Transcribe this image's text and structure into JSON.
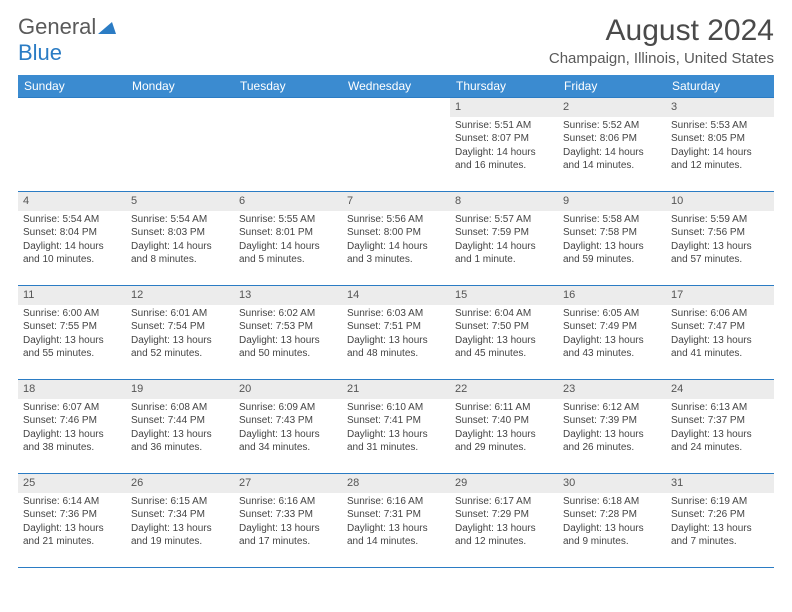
{
  "logo": {
    "general": "General",
    "blue": "Blue"
  },
  "title": "August 2024",
  "location": "Champaign, Illinois, United States",
  "weekdays": [
    "Sunday",
    "Monday",
    "Tuesday",
    "Wednesday",
    "Thursday",
    "Friday",
    "Saturday"
  ],
  "colors": {
    "header_bg": "#3b8bd0",
    "header_text": "#ffffff",
    "border": "#2b7cc4",
    "daynum_bg": "#ececec",
    "text": "#444444",
    "title_text": "#4a4a4a"
  },
  "layout": {
    "leading_blanks": 4
  },
  "days": [
    {
      "n": 1,
      "sunrise": "5:51 AM",
      "sunset": "8:07 PM",
      "daylight": "14 hours and 16 minutes."
    },
    {
      "n": 2,
      "sunrise": "5:52 AM",
      "sunset": "8:06 PM",
      "daylight": "14 hours and 14 minutes."
    },
    {
      "n": 3,
      "sunrise": "5:53 AM",
      "sunset": "8:05 PM",
      "daylight": "14 hours and 12 minutes."
    },
    {
      "n": 4,
      "sunrise": "5:54 AM",
      "sunset": "8:04 PM",
      "daylight": "14 hours and 10 minutes."
    },
    {
      "n": 5,
      "sunrise": "5:54 AM",
      "sunset": "8:03 PM",
      "daylight": "14 hours and 8 minutes."
    },
    {
      "n": 6,
      "sunrise": "5:55 AM",
      "sunset": "8:01 PM",
      "daylight": "14 hours and 5 minutes."
    },
    {
      "n": 7,
      "sunrise": "5:56 AM",
      "sunset": "8:00 PM",
      "daylight": "14 hours and 3 minutes."
    },
    {
      "n": 8,
      "sunrise": "5:57 AM",
      "sunset": "7:59 PM",
      "daylight": "14 hours and 1 minute."
    },
    {
      "n": 9,
      "sunrise": "5:58 AM",
      "sunset": "7:58 PM",
      "daylight": "13 hours and 59 minutes."
    },
    {
      "n": 10,
      "sunrise": "5:59 AM",
      "sunset": "7:56 PM",
      "daylight": "13 hours and 57 minutes."
    },
    {
      "n": 11,
      "sunrise": "6:00 AM",
      "sunset": "7:55 PM",
      "daylight": "13 hours and 55 minutes."
    },
    {
      "n": 12,
      "sunrise": "6:01 AM",
      "sunset": "7:54 PM",
      "daylight": "13 hours and 52 minutes."
    },
    {
      "n": 13,
      "sunrise": "6:02 AM",
      "sunset": "7:53 PM",
      "daylight": "13 hours and 50 minutes."
    },
    {
      "n": 14,
      "sunrise": "6:03 AM",
      "sunset": "7:51 PM",
      "daylight": "13 hours and 48 minutes."
    },
    {
      "n": 15,
      "sunrise": "6:04 AM",
      "sunset": "7:50 PM",
      "daylight": "13 hours and 45 minutes."
    },
    {
      "n": 16,
      "sunrise": "6:05 AM",
      "sunset": "7:49 PM",
      "daylight": "13 hours and 43 minutes."
    },
    {
      "n": 17,
      "sunrise": "6:06 AM",
      "sunset": "7:47 PM",
      "daylight": "13 hours and 41 minutes."
    },
    {
      "n": 18,
      "sunrise": "6:07 AM",
      "sunset": "7:46 PM",
      "daylight": "13 hours and 38 minutes."
    },
    {
      "n": 19,
      "sunrise": "6:08 AM",
      "sunset": "7:44 PM",
      "daylight": "13 hours and 36 minutes."
    },
    {
      "n": 20,
      "sunrise": "6:09 AM",
      "sunset": "7:43 PM",
      "daylight": "13 hours and 34 minutes."
    },
    {
      "n": 21,
      "sunrise": "6:10 AM",
      "sunset": "7:41 PM",
      "daylight": "13 hours and 31 minutes."
    },
    {
      "n": 22,
      "sunrise": "6:11 AM",
      "sunset": "7:40 PM",
      "daylight": "13 hours and 29 minutes."
    },
    {
      "n": 23,
      "sunrise": "6:12 AM",
      "sunset": "7:39 PM",
      "daylight": "13 hours and 26 minutes."
    },
    {
      "n": 24,
      "sunrise": "6:13 AM",
      "sunset": "7:37 PM",
      "daylight": "13 hours and 24 minutes."
    },
    {
      "n": 25,
      "sunrise": "6:14 AM",
      "sunset": "7:36 PM",
      "daylight": "13 hours and 21 minutes."
    },
    {
      "n": 26,
      "sunrise": "6:15 AM",
      "sunset": "7:34 PM",
      "daylight": "13 hours and 19 minutes."
    },
    {
      "n": 27,
      "sunrise": "6:16 AM",
      "sunset": "7:33 PM",
      "daylight": "13 hours and 17 minutes."
    },
    {
      "n": 28,
      "sunrise": "6:16 AM",
      "sunset": "7:31 PM",
      "daylight": "13 hours and 14 minutes."
    },
    {
      "n": 29,
      "sunrise": "6:17 AM",
      "sunset": "7:29 PM",
      "daylight": "13 hours and 12 minutes."
    },
    {
      "n": 30,
      "sunrise": "6:18 AM",
      "sunset": "7:28 PM",
      "daylight": "13 hours and 9 minutes."
    },
    {
      "n": 31,
      "sunrise": "6:19 AM",
      "sunset": "7:26 PM",
      "daylight": "13 hours and 7 minutes."
    }
  ],
  "labels": {
    "sunrise": "Sunrise: ",
    "sunset": "Sunset: ",
    "daylight": "Daylight: "
  }
}
